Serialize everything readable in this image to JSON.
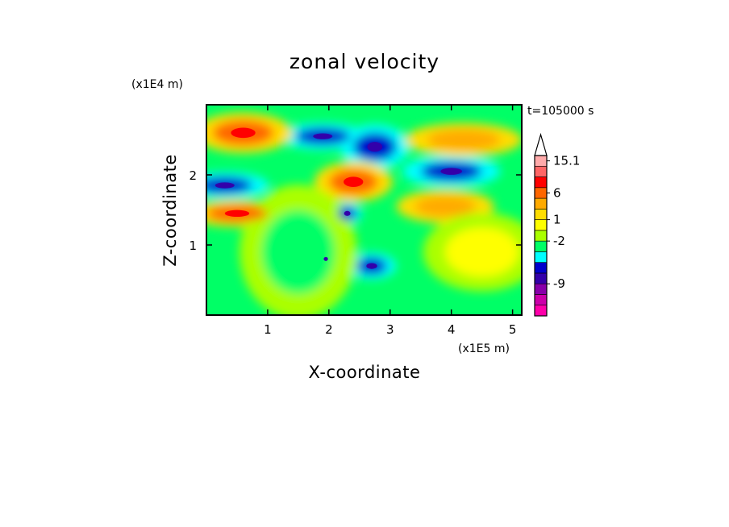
{
  "chart_data": {
    "type": "heatmap",
    "title": "zonal velocity",
    "xlabel": "X-coordinate",
    "ylabel": "Z-coordinate",
    "x_scale_label": "(x1E5 m)",
    "y_scale_label": "(x1E4 m)",
    "time_label": "t=105000 s",
    "xlim": [
      0,
      5.15
    ],
    "ylim": [
      0,
      3.0
    ],
    "x_ticks": [
      1,
      2,
      3,
      4,
      5
    ],
    "y_ticks": [
      1,
      2
    ],
    "colorbar": {
      "labels": [
        {
          "value": 15.1,
          "text": "15.1"
        },
        {
          "value": 6,
          "text": "6"
        },
        {
          "value": 1,
          "text": "1"
        },
        {
          "value": -2,
          "text": "-2"
        },
        {
          "value": -9,
          "text": "-9"
        }
      ],
      "levels": [
        {
          "color": "#ff00aa"
        },
        {
          "color": "#cc00aa"
        },
        {
          "color": "#8800aa"
        },
        {
          "color": "#3300aa"
        },
        {
          "color": "#0000cc"
        },
        {
          "color": "#00ffff"
        },
        {
          "color": "#00ff66"
        },
        {
          "color": "#aaff00"
        },
        {
          "color": "#ffff00"
        },
        {
          "color": "#ffdd00"
        },
        {
          "color": "#ffaa00"
        },
        {
          "color": "#ff6600"
        },
        {
          "color": "#ff0000"
        },
        {
          "color": "#ff6666"
        },
        {
          "color": "#ffaaaa"
        }
      ],
      "overflow_triangle_color": "#ffffff"
    },
    "field_features": [
      {
        "x": 1.9,
        "z": 2.55,
        "rx": 0.45,
        "rz": 0.12,
        "level": 4,
        "note": "negative jet, upper middle"
      },
      {
        "x": 2.75,
        "z": 2.4,
        "rx": 0.35,
        "rz": 0.2,
        "level": 4
      },
      {
        "x": 0.3,
        "z": 1.85,
        "rx": 0.45,
        "rz": 0.12,
        "level": 4
      },
      {
        "x": 4.0,
        "z": 2.05,
        "rx": 0.5,
        "rz": 0.14,
        "level": 4
      },
      {
        "x": 2.7,
        "z": 0.7,
        "rx": 0.25,
        "rz": 0.12,
        "level": 4
      },
      {
        "x": 1.95,
        "z": 0.8,
        "rx": 0.1,
        "rz": 0.08,
        "level": 4
      },
      {
        "x": 2.3,
        "z": 1.45,
        "rx": 0.15,
        "rz": 0.1,
        "level": 4
      },
      {
        "x": 2.4,
        "z": 1.9,
        "rx": 0.4,
        "rz": 0.18,
        "level": 11
      },
      {
        "x": 0.6,
        "z": 2.6,
        "rx": 0.5,
        "rz": 0.18,
        "level": 11
      },
      {
        "x": 0.5,
        "z": 1.45,
        "rx": 0.5,
        "rz": 0.12,
        "level": 11
      },
      {
        "x": 4.2,
        "z": 2.5,
        "rx": 0.6,
        "rz": 0.15,
        "level": 10
      },
      {
        "x": 3.9,
        "z": 1.55,
        "rx": 0.5,
        "rz": 0.15,
        "level": 10
      },
      {
        "x": 4.5,
        "z": 0.9,
        "rx": 0.6,
        "rz": 0.35,
        "level": 8
      },
      {
        "x": 1.5,
        "z": 0.9,
        "rx": 0.6,
        "rz": 0.6,
        "level": 6
      }
    ]
  }
}
